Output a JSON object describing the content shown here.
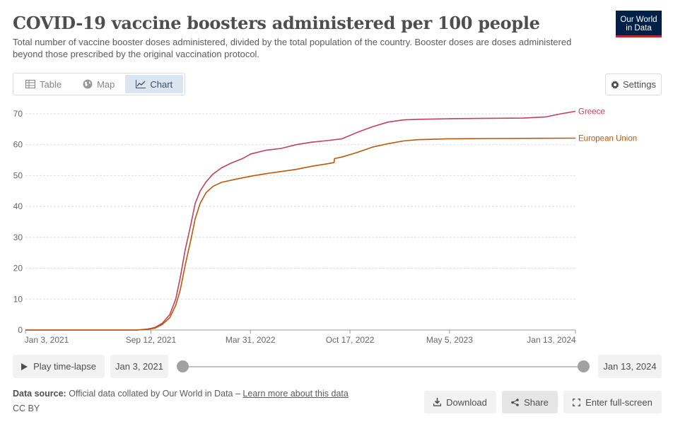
{
  "header": {
    "title": "COVID-19 vaccine boosters administered per 100 people",
    "subtitle": "Total number of vaccine booster doses administered, divided by the total population of the country. Booster doses are doses administered beyond those prescribed by the original vaccination protocol.",
    "logo_line1": "Our World",
    "logo_line2": "in Data"
  },
  "tabs": [
    {
      "label": "Table",
      "icon": "table-icon"
    },
    {
      "label": "Map",
      "icon": "globe-icon"
    },
    {
      "label": "Chart",
      "icon": "line-chart-icon",
      "active": true
    }
  ],
  "settings_label": "Settings",
  "timeline": {
    "play_label": "Play time-lapse",
    "start_label": "Jan 3, 2021",
    "end_label": "Jan 13, 2024"
  },
  "footer": {
    "source_label": "Data source:",
    "source_text": "Official data collated by Our World in Data –",
    "source_link": "Learn more about this data",
    "license": "CC BY",
    "download_label": "Download",
    "share_label": "Share",
    "fullscreen_label": "Enter full-screen"
  },
  "colors": {
    "greece": "#c0415e",
    "eu": "#b8590d",
    "grid": "#dddddd",
    "axis_text": "#666666"
  },
  "chart_data": {
    "type": "line",
    "x_axis": {
      "type": "date",
      "range": [
        "2021-01-03",
        "2024-01-13"
      ],
      "ticks": [
        {
          "date": "2021-01-03",
          "label": "Jan 3, 2021"
        },
        {
          "date": "2021-09-12",
          "label": "Sep 12, 2021"
        },
        {
          "date": "2022-03-31",
          "label": "Mar 31, 2022"
        },
        {
          "date": "2022-10-17",
          "label": "Oct 17, 2022"
        },
        {
          "date": "2023-05-05",
          "label": "May 5, 2023"
        },
        {
          "date": "2024-01-13",
          "label": "Jan 13, 2024"
        }
      ]
    },
    "y_axis": {
      "range": [
        0,
        70
      ],
      "ticks": [
        0,
        10,
        20,
        30,
        40,
        50,
        60,
        70
      ]
    },
    "grid": "horizontal",
    "legend": "inline-right",
    "series": [
      {
        "name": "Greece",
        "color": "#c0415e",
        "points": [
          [
            "2021-01-03",
            0
          ],
          [
            "2021-08-15",
            0
          ],
          [
            "2021-09-05",
            0.3
          ],
          [
            "2021-09-20",
            0.8
          ],
          [
            "2021-10-05",
            2.2
          ],
          [
            "2021-10-20",
            5
          ],
          [
            "2021-11-01",
            10
          ],
          [
            "2021-11-10",
            17
          ],
          [
            "2021-11-20",
            26
          ],
          [
            "2021-12-01",
            34
          ],
          [
            "2021-12-10",
            41
          ],
          [
            "2021-12-20",
            45
          ],
          [
            "2022-01-01",
            48
          ],
          [
            "2022-01-15",
            50.5
          ],
          [
            "2022-02-01",
            52.5
          ],
          [
            "2022-02-20",
            54
          ],
          [
            "2022-03-15",
            55.5
          ],
          [
            "2022-04-01",
            57
          ],
          [
            "2022-05-01",
            58.2
          ],
          [
            "2022-06-01",
            58.8
          ],
          [
            "2022-07-01",
            60
          ],
          [
            "2022-08-01",
            60.8
          ],
          [
            "2022-09-01",
            61.3
          ],
          [
            "2022-10-01",
            61.9
          ],
          [
            "2022-11-01",
            64
          ],
          [
            "2022-12-01",
            65.8
          ],
          [
            "2023-01-01",
            67.3
          ],
          [
            "2023-02-01",
            68
          ],
          [
            "2023-03-01",
            68.2
          ],
          [
            "2023-05-01",
            68.4
          ],
          [
            "2023-07-01",
            68.5
          ],
          [
            "2023-10-01",
            68.6
          ],
          [
            "2023-11-15",
            69
          ],
          [
            "2023-12-15",
            70
          ],
          [
            "2024-01-13",
            70.8
          ]
        ]
      },
      {
        "name": "European Union",
        "color": "#b8590d",
        "points": [
          [
            "2021-01-03",
            0
          ],
          [
            "2021-08-15",
            0
          ],
          [
            "2021-09-05",
            0.2
          ],
          [
            "2021-09-20",
            0.6
          ],
          [
            "2021-10-05",
            1.8
          ],
          [
            "2021-10-20",
            4
          ],
          [
            "2021-11-01",
            8
          ],
          [
            "2021-11-10",
            13
          ],
          [
            "2021-11-20",
            21
          ],
          [
            "2021-12-01",
            29
          ],
          [
            "2021-12-10",
            36
          ],
          [
            "2021-12-20",
            41
          ],
          [
            "2022-01-01",
            44.5
          ],
          [
            "2022-01-15",
            46.5
          ],
          [
            "2022-02-01",
            47.8
          ],
          [
            "2022-03-01",
            48.8
          ],
          [
            "2022-04-01",
            49.8
          ],
          [
            "2022-05-01",
            50.6
          ],
          [
            "2022-06-01",
            51.3
          ],
          [
            "2022-07-01",
            52
          ],
          [
            "2022-08-01",
            53
          ],
          [
            "2022-09-01",
            53.8
          ],
          [
            "2022-09-15",
            54.2
          ],
          [
            "2022-09-16",
            55.5
          ],
          [
            "2022-10-01",
            56
          ],
          [
            "2022-11-01",
            57.5
          ],
          [
            "2022-12-01",
            59.2
          ],
          [
            "2023-01-01",
            60.3
          ],
          [
            "2023-02-01",
            61.2
          ],
          [
            "2023-03-01",
            61.6
          ],
          [
            "2023-05-01",
            61.9
          ],
          [
            "2023-08-01",
            62
          ],
          [
            "2024-01-13",
            62.1
          ]
        ]
      }
    ]
  }
}
